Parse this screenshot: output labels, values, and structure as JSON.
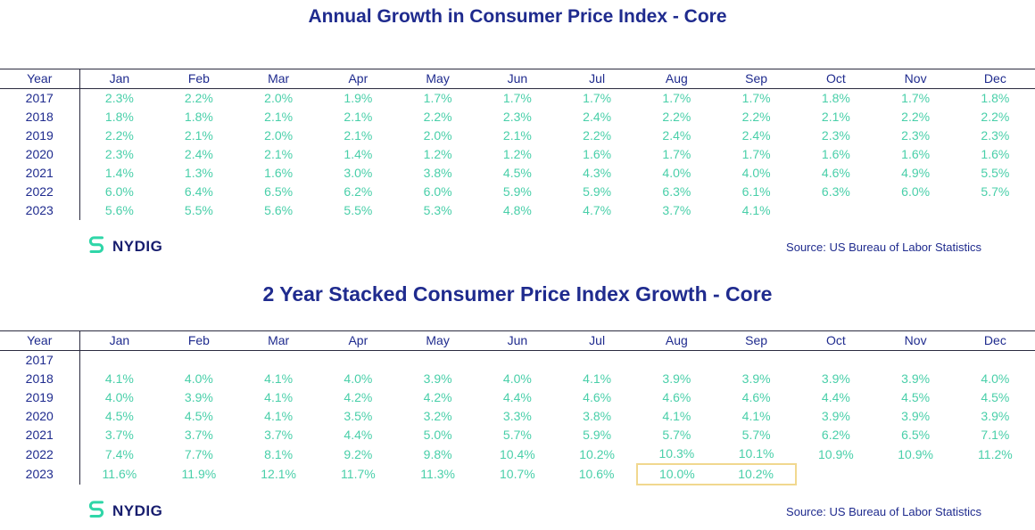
{
  "colors": {
    "navy": "#1f2b8e",
    "teal": "#49cfa9",
    "highlight_border": "#f1d88f",
    "table_line": "#2b2b3f"
  },
  "chart_data": [
    {
      "type": "table",
      "title": "Annual Growth in Consumer Price Index - Core",
      "columns": [
        "Year",
        "Jan",
        "Feb",
        "Mar",
        "Apr",
        "May",
        "Jun",
        "Jul",
        "Aug",
        "Sep",
        "Oct",
        "Nov",
        "Dec"
      ],
      "rows": [
        [
          "2017",
          "2.3%",
          "2.2%",
          "2.0%",
          "1.9%",
          "1.7%",
          "1.7%",
          "1.7%",
          "1.7%",
          "1.7%",
          "1.8%",
          "1.7%",
          "1.8%"
        ],
        [
          "2018",
          "1.8%",
          "1.8%",
          "2.1%",
          "2.1%",
          "2.2%",
          "2.3%",
          "2.4%",
          "2.2%",
          "2.2%",
          "2.1%",
          "2.2%",
          "2.2%"
        ],
        [
          "2019",
          "2.2%",
          "2.1%",
          "2.0%",
          "2.1%",
          "2.0%",
          "2.1%",
          "2.2%",
          "2.4%",
          "2.4%",
          "2.3%",
          "2.3%",
          "2.3%"
        ],
        [
          "2020",
          "2.3%",
          "2.4%",
          "2.1%",
          "1.4%",
          "1.2%",
          "1.2%",
          "1.6%",
          "1.7%",
          "1.7%",
          "1.6%",
          "1.6%",
          "1.6%"
        ],
        [
          "2021",
          "1.4%",
          "1.3%",
          "1.6%",
          "3.0%",
          "3.8%",
          "4.5%",
          "4.3%",
          "4.0%",
          "4.0%",
          "4.6%",
          "4.9%",
          "5.5%"
        ],
        [
          "2022",
          "6.0%",
          "6.4%",
          "6.5%",
          "6.2%",
          "6.0%",
          "5.9%",
          "5.9%",
          "6.3%",
          "6.1%",
          "6.3%",
          "6.0%",
          "5.7%"
        ],
        [
          "2023",
          "5.6%",
          "5.5%",
          "5.6%",
          "5.5%",
          "5.3%",
          "4.8%",
          "4.7%",
          "3.7%",
          "4.1%",
          "",
          "",
          ""
        ]
      ],
      "source": "Source: US Bureau of Labor Statistics",
      "logo": "NYDIG"
    },
    {
      "type": "table",
      "title": "2 Year Stacked Consumer Price Index Growth - Core",
      "columns": [
        "Year",
        "Jan",
        "Feb",
        "Mar",
        "Apr",
        "May",
        "Jun",
        "Jul",
        "Aug",
        "Sep",
        "Oct",
        "Nov",
        "Dec"
      ],
      "rows": [
        [
          "2017",
          "",
          "",
          "",
          "",
          "",
          "",
          "",
          "",
          "",
          "",
          "",
          ""
        ],
        [
          "2018",
          "4.1%",
          "4.0%",
          "4.1%",
          "4.0%",
          "3.9%",
          "4.0%",
          "4.1%",
          "3.9%",
          "3.9%",
          "3.9%",
          "3.9%",
          "4.0%"
        ],
        [
          "2019",
          "4.0%",
          "3.9%",
          "4.1%",
          "4.2%",
          "4.2%",
          "4.4%",
          "4.6%",
          "4.6%",
          "4.6%",
          "4.4%",
          "4.5%",
          "4.5%"
        ],
        [
          "2020",
          "4.5%",
          "4.5%",
          "4.1%",
          "3.5%",
          "3.2%",
          "3.3%",
          "3.8%",
          "4.1%",
          "4.1%",
          "3.9%",
          "3.9%",
          "3.9%"
        ],
        [
          "2021",
          "3.7%",
          "3.7%",
          "3.7%",
          "4.4%",
          "5.0%",
          "5.7%",
          "5.9%",
          "5.7%",
          "5.7%",
          "6.2%",
          "6.5%",
          "7.1%"
        ],
        [
          "2022",
          "7.4%",
          "7.7%",
          "8.1%",
          "9.2%",
          "9.8%",
          "10.4%",
          "10.2%",
          "10.3%",
          "10.1%",
          "10.9%",
          "10.9%",
          "11.2%"
        ],
        [
          "2023",
          "11.6%",
          "11.9%",
          "12.1%",
          "11.7%",
          "11.3%",
          "10.7%",
          "10.6%",
          "10.0%",
          "10.2%",
          "",
          "",
          ""
        ]
      ],
      "highlight": {
        "row": "2023",
        "columns": [
          "Aug",
          "Sep"
        ]
      },
      "source": "Source: US Bureau of Labor Statistics",
      "logo": "NYDIG"
    }
  ]
}
